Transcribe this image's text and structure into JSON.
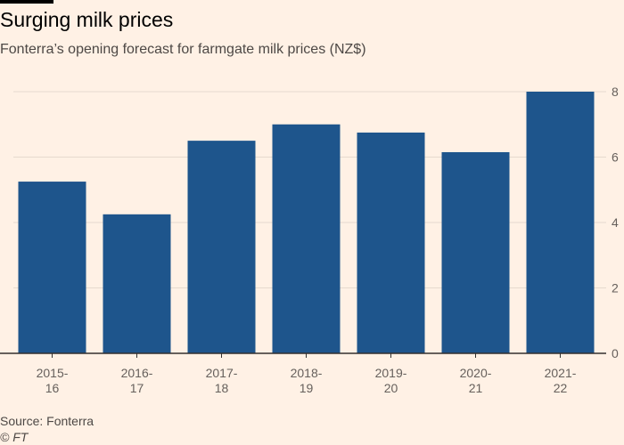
{
  "header": {
    "title": "Surging milk prices",
    "subtitle": "Fonterra’s opening forecast for farmgate milk prices (NZ$)"
  },
  "footer": {
    "source": "Source: Fonterra",
    "copyright": "© FT"
  },
  "colors": {
    "bar": "#1e558c",
    "grid": "#e6d9ce",
    "axis": "#33302e",
    "text": "#66605c",
    "background": "#fff1e5"
  },
  "chart_data": {
    "type": "bar",
    "categories": [
      [
        "2015-",
        "16"
      ],
      [
        "2016-",
        "17"
      ],
      [
        "2017-",
        "18"
      ],
      [
        "2018-",
        "19"
      ],
      [
        "2019-",
        "20"
      ],
      [
        "2020-",
        "21"
      ],
      [
        "2021-",
        "22"
      ]
    ],
    "values": [
      5.25,
      4.25,
      6.5,
      7.0,
      6.75,
      6.15,
      8.0
    ],
    "ylim": [
      0,
      8
    ],
    "yticks": [
      0,
      2,
      4,
      6,
      8
    ],
    "y_axis_side": "right",
    "grid": true
  }
}
